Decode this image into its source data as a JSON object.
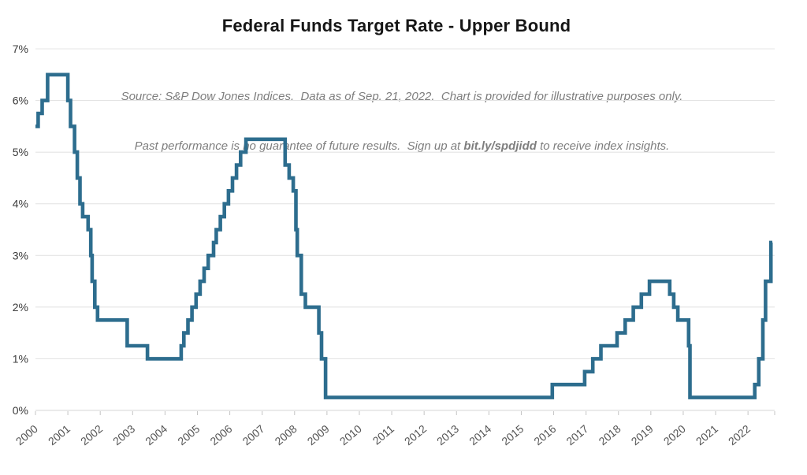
{
  "chart_data": {
    "type": "line",
    "line_style": "step",
    "title": "Federal Funds Target Rate - Upper Bound",
    "subtitle": {
      "line1": "Source: S&P Dow Jones Indices.  Data as of Sep. 21, 2022.  Chart is provided for illustrative purposes only.",
      "line2_prefix": "Past performance is no guarantee of future results.  Sign up at ",
      "link": "bit.ly/spdjidd",
      "line2_suffix": " to receive index insights."
    },
    "unit": "%",
    "ylim": [
      0,
      7
    ],
    "xlim": [
      2000,
      2022.824
    ],
    "x_end": 2022.75,
    "grid": "horizontal",
    "legend": "none",
    "y_ticks": [
      {
        "value": 7,
        "label": "7%"
      },
      {
        "value": 6,
        "label": "6%"
      },
      {
        "value": 5,
        "label": "5%"
      },
      {
        "value": 4,
        "label": "4%"
      },
      {
        "value": 3,
        "label": "3%"
      },
      {
        "value": 2,
        "label": "2%"
      },
      {
        "value": 1,
        "label": "1%"
      },
      {
        "value": 0,
        "label": "0%"
      }
    ],
    "x_ticks": [
      2000,
      2001,
      2002,
      2003,
      2004,
      2005,
      2006,
      2007,
      2008,
      2009,
      2010,
      2011,
      2012,
      2013,
      2014,
      2015,
      2016,
      2017,
      2018,
      2019,
      2020,
      2021,
      2022
    ],
    "steps": [
      [
        2000.0,
        5.5
      ],
      [
        2000.083,
        5.75
      ],
      [
        2000.208,
        6.0
      ],
      [
        2000.375,
        6.5
      ],
      [
        2001.0,
        6.0
      ],
      [
        2001.083,
        5.5
      ],
      [
        2001.208,
        5.0
      ],
      [
        2001.292,
        4.5
      ],
      [
        2001.375,
        4.0
      ],
      [
        2001.458,
        3.75
      ],
      [
        2001.625,
        3.5
      ],
      [
        2001.708,
        3.0
      ],
      [
        2001.75,
        2.5
      ],
      [
        2001.833,
        2.0
      ],
      [
        2001.917,
        1.75
      ],
      [
        2002.833,
        1.25
      ],
      [
        2003.458,
        1.0
      ],
      [
        2004.5,
        1.25
      ],
      [
        2004.583,
        1.5
      ],
      [
        2004.708,
        1.75
      ],
      [
        2004.833,
        2.0
      ],
      [
        2004.958,
        2.25
      ],
      [
        2005.083,
        2.5
      ],
      [
        2005.208,
        2.75
      ],
      [
        2005.333,
        3.0
      ],
      [
        2005.5,
        3.25
      ],
      [
        2005.583,
        3.5
      ],
      [
        2005.708,
        3.75
      ],
      [
        2005.833,
        4.0
      ],
      [
        2005.958,
        4.25
      ],
      [
        2006.083,
        4.5
      ],
      [
        2006.208,
        4.75
      ],
      [
        2006.333,
        5.0
      ],
      [
        2006.5,
        5.25
      ],
      [
        2007.708,
        4.75
      ],
      [
        2007.833,
        4.5
      ],
      [
        2007.958,
        4.25
      ],
      [
        2008.042,
        3.5
      ],
      [
        2008.083,
        3.0
      ],
      [
        2008.208,
        2.25
      ],
      [
        2008.333,
        2.0
      ],
      [
        2008.75,
        1.5
      ],
      [
        2008.833,
        1.0
      ],
      [
        2008.958,
        0.25
      ],
      [
        2015.958,
        0.5
      ],
      [
        2016.958,
        0.75
      ],
      [
        2017.208,
        1.0
      ],
      [
        2017.458,
        1.25
      ],
      [
        2017.958,
        1.5
      ],
      [
        2018.208,
        1.75
      ],
      [
        2018.458,
        2.0
      ],
      [
        2018.708,
        2.25
      ],
      [
        2018.958,
        2.5
      ],
      [
        2019.583,
        2.25
      ],
      [
        2019.708,
        2.0
      ],
      [
        2019.833,
        1.75
      ],
      [
        2020.167,
        1.25
      ],
      [
        2020.208,
        0.25
      ],
      [
        2022.208,
        0.5
      ],
      [
        2022.333,
        1.0
      ],
      [
        2022.458,
        1.75
      ],
      [
        2022.542,
        2.5
      ],
      [
        2022.708,
        3.25
      ]
    ],
    "colors": {
      "line": "#2d6d8e",
      "gridline": "#e4e4e4",
      "axis_line": "#d4d4d4",
      "tick": "#c4c4c4",
      "y_label": "#3c3c3c",
      "x_label": "#555555",
      "title": "#161616",
      "subtitle": "#7e7e7e"
    }
  }
}
